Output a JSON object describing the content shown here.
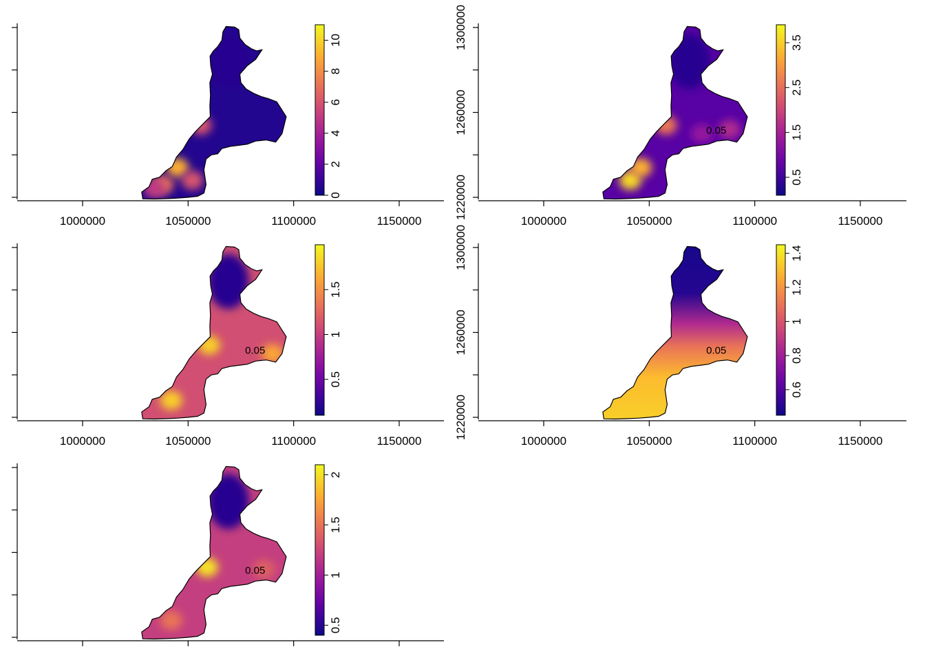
{
  "chart_data": [
    {
      "type": "heatmap",
      "panel": "top-left",
      "title": "",
      "xlabel": "",
      "ylabel": "",
      "xlim": [
        970000,
        1170000
      ],
      "ylim": [
        1218000,
        1304000
      ],
      "x_ticks": [
        1000000,
        1050000,
        1100000,
        1150000
      ],
      "x_tick_labels": [
        "1000000",
        "1050000",
        "1100000",
        "1150000"
      ],
      "y_ticks": [
        1220000,
        1240000,
        1260000,
        1280000,
        1300000
      ],
      "y_tick_labels": [],
      "colorbar": {
        "min": 0,
        "max": 11,
        "ticks": [
          0,
          2,
          4,
          6,
          8,
          10
        ],
        "tick_labels": [
          "0",
          "2",
          "4",
          "6",
          "8",
          "10"
        ]
      },
      "contour_level_label": "",
      "hotspots": [
        {
          "x": 1045000,
          "y": 1234000,
          "value": 9
        },
        {
          "x": 1038000,
          "y": 1226000,
          "value": 7
        },
        {
          "x": 1052000,
          "y": 1228000,
          "value": 6
        },
        {
          "x": 1056000,
          "y": 1254000,
          "value": 6
        },
        {
          "x": 1034000,
          "y": 1224000,
          "value": 5
        }
      ],
      "base_value": 0.5
    },
    {
      "type": "heatmap",
      "panel": "top-right",
      "title": "",
      "xlabel": "",
      "ylabel": "",
      "xlim": [
        970000,
        1170000
      ],
      "ylim": [
        1218000,
        1304000
      ],
      "x_ticks": [
        1000000,
        1050000,
        1100000,
        1150000
      ],
      "x_tick_labels": [
        "1000000",
        "1050000",
        "1100000",
        "1150000"
      ],
      "y_ticks": [
        1220000,
        1260000,
        1300000
      ],
      "y_tick_labels": [
        "1220000",
        "1260000",
        "1300000"
      ],
      "y_minor_ticks": [
        1240000,
        1280000
      ],
      "colorbar": {
        "min": 0.1,
        "max": 3.9,
        "ticks": [
          0.5,
          1.5,
          2.5,
          3.5
        ],
        "tick_labels": [
          "0.5",
          "1.5",
          "2.5",
          "3.5"
        ]
      },
      "contour_level_label": "0.05",
      "hotspots": [
        {
          "x": 1041000,
          "y": 1228000,
          "value": 3.6
        },
        {
          "x": 1046000,
          "y": 1234000,
          "value": 3.2
        },
        {
          "x": 1058000,
          "y": 1254000,
          "value": 2.6
        },
        {
          "x": 1088000,
          "y": 1252000,
          "value": 1.6
        },
        {
          "x": 1075000,
          "y": 1250000,
          "value": 1.3
        }
      ],
      "base_value": 0.7
    },
    {
      "type": "heatmap",
      "panel": "middle-left",
      "title": "",
      "xlabel": "",
      "ylabel": "",
      "xlim": [
        970000,
        1170000
      ],
      "ylim": [
        1218000,
        1304000
      ],
      "x_ticks": [
        1000000,
        1050000,
        1100000,
        1150000
      ],
      "x_tick_labels": [
        "1000000",
        "1050000",
        "1100000",
        "1150000"
      ],
      "y_ticks": [
        1220000,
        1240000,
        1260000,
        1280000,
        1300000
      ],
      "y_tick_labels": [],
      "colorbar": {
        "min": 0.1,
        "max": 2.0,
        "ticks": [
          0.5,
          1,
          1.5
        ],
        "tick_labels": [
          "0.5",
          "1",
          "1.5"
        ]
      },
      "contour_level_label": "0.05",
      "hotspots": [
        {
          "x": 1042000,
          "y": 1228000,
          "value": 1.8
        },
        {
          "x": 1060000,
          "y": 1254000,
          "value": 1.8
        },
        {
          "x": 1090000,
          "y": 1250000,
          "value": 1.6
        }
      ],
      "base_value": 1.1
    },
    {
      "type": "heatmap",
      "panel": "middle-right",
      "title": "",
      "xlabel": "",
      "ylabel": "",
      "xlim": [
        970000,
        1170000
      ],
      "ylim": [
        1218000,
        1304000
      ],
      "x_ticks": [
        1000000,
        1050000,
        1100000,
        1150000
      ],
      "x_tick_labels": [
        "1000000",
        "1050000",
        "1100000",
        "1150000"
      ],
      "y_ticks": [
        1220000,
        1260000,
        1300000
      ],
      "y_tick_labels": [
        "1220000",
        "1260000",
        "1300000"
      ],
      "y_minor_ticks": [
        1240000,
        1280000
      ],
      "colorbar": {
        "min": 0.45,
        "max": 1.45,
        "ticks": [
          0.6,
          0.8,
          1,
          1.2,
          1.4
        ],
        "tick_labels": [
          "0.6",
          "0.8",
          "1",
          "1.2",
          "1.4"
        ]
      },
      "contour_level_label": "0.05",
      "gradient": "north-low-south-high"
    },
    {
      "type": "heatmap",
      "panel": "bottom-left",
      "title": "",
      "xlabel": "",
      "ylabel": "",
      "xlim": [
        970000,
        1170000
      ],
      "ylim": [
        1218000,
        1304000
      ],
      "x_ticks": [
        1000000,
        1050000,
        1100000,
        1150000
      ],
      "x_tick_labels": [],
      "y_ticks": [
        1220000,
        1240000,
        1260000,
        1280000,
        1300000
      ],
      "y_tick_labels": [],
      "colorbar": {
        "min": 0.4,
        "max": 2.1,
        "ticks": [
          0.5,
          1,
          1.5,
          2
        ],
        "tick_labels": [
          "0.5",
          "1",
          "1.5",
          "2"
        ]
      },
      "contour_level_label": "0.05",
      "hotspots": [
        {
          "x": 1059000,
          "y": 1253000,
          "value": 2.0
        },
        {
          "x": 1042000,
          "y": 1228000,
          "value": 1.5
        },
        {
          "x": 1086000,
          "y": 1252000,
          "value": 1.4
        }
      ],
      "base_value": 1.2
    }
  ],
  "colors": {
    "scale": [
      "#0d0887",
      "#5c01a6",
      "#9c179e",
      "#cc4778",
      "#ed7953",
      "#fdb42f",
      "#f0f921"
    ],
    "outline": "#000000"
  }
}
